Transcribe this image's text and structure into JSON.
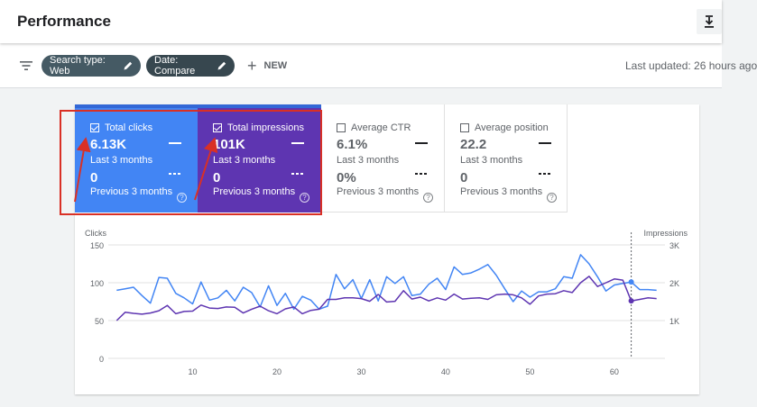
{
  "header": {
    "title": "Performance",
    "download_icon": "download-icon"
  },
  "filters": {
    "filter_icon": "filter-list-icon",
    "search_type_chip": "Search type: Web",
    "date_chip": "Date: Compare",
    "new_label": "NEW",
    "last_updated": "Last updated: 26 hours ago"
  },
  "metrics": [
    {
      "label": "Total clicks",
      "checked": true,
      "current": "6.13K",
      "current_period": "Last 3 months",
      "previous": "0",
      "previous_period": "Previous 3 months",
      "color": "#4285f4"
    },
    {
      "label": "Total impressions",
      "checked": true,
      "current": "101K",
      "current_period": "Last 3 months",
      "previous": "0",
      "previous_period": "Previous 3 months",
      "color": "#5e35b1"
    },
    {
      "label": "Average CTR",
      "checked": false,
      "current": "6.1%",
      "current_period": "Last 3 months",
      "previous": "0%",
      "previous_period": "Previous 3 months"
    },
    {
      "label": "Average position",
      "checked": false,
      "current": "22.2",
      "current_period": "Last 3 months",
      "previous": "0",
      "previous_period": "Previous 3 months"
    }
  ],
  "chart_data": {
    "type": "line",
    "ylabel_left": "Clicks",
    "ylabel_right": "Impressions",
    "left_ticks": [
      "0",
      "50",
      "100",
      "150"
    ],
    "right_ticks": [
      "",
      "1K",
      "2K",
      "3K"
    ],
    "x_ticks": [
      10,
      20,
      30,
      40,
      50,
      60
    ],
    "xlim": [
      0,
      66
    ],
    "ylim_left": [
      0,
      150
    ],
    "ylim_right": [
      0,
      3000
    ],
    "hover_x": 62,
    "series": [
      {
        "name": "Clicks",
        "axis": "left",
        "color": "#4285f4",
        "values": [
          90,
          92,
          94,
          83,
          73,
          107,
          106,
          86,
          80,
          72,
          101,
          77,
          80,
          90,
          76,
          94,
          87,
          68,
          96,
          70,
          86,
          65,
          82,
          77,
          65,
          69,
          111,
          92,
          104,
          79,
          104,
          76,
          108,
          99,
          108,
          83,
          85,
          98,
          106,
          91,
          121,
          111,
          113,
          118,
          124,
          110,
          92,
          75,
          89,
          81,
          88,
          88,
          92,
          108,
          106,
          137,
          125,
          108,
          89,
          97,
          99,
          101,
          91,
          91,
          90
        ]
      },
      {
        "name": "Impressions",
        "axis": "right",
        "color": "#5e35b1",
        "values": [
          1000,
          1220,
          1190,
          1170,
          1200,
          1260,
          1400,
          1180,
          1240,
          1250,
          1410,
          1330,
          1320,
          1360,
          1350,
          1200,
          1300,
          1380,
          1260,
          1180,
          1310,
          1360,
          1180,
          1270,
          1300,
          1560,
          1560,
          1600,
          1600,
          1580,
          1510,
          1690,
          1490,
          1510,
          1790,
          1570,
          1620,
          1520,
          1600,
          1540,
          1700,
          1570,
          1590,
          1600,
          1560,
          1680,
          1700,
          1680,
          1600,
          1430,
          1650,
          1700,
          1710,
          1790,
          1740,
          2000,
          2170,
          1900,
          2000,
          2100,
          2070,
          1520,
          1560,
          1600,
          1580
        ]
      }
    ]
  }
}
